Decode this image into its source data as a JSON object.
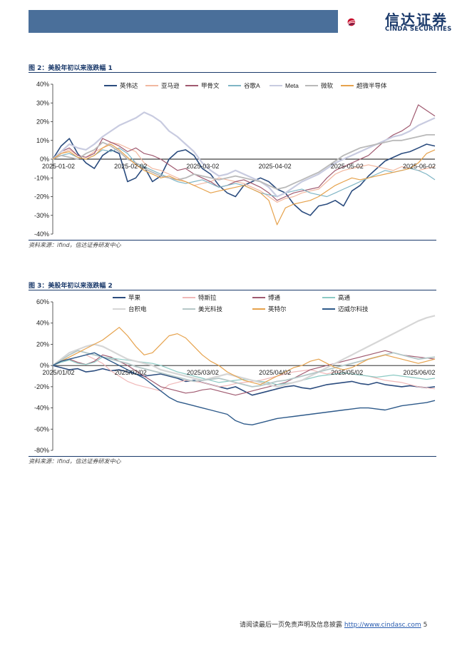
{
  "header": {
    "logo_cn": "信达证券",
    "logo_en": "CINDA SECURITIES",
    "accent": "#4a6f9a",
    "brand": "#1b3a6b"
  },
  "figures": [
    {
      "title": "图 2：美股年初以来涨跌幅 1",
      "source": "资料来源：ifind，信达证券研发中心"
    },
    {
      "title": "图 3：美股年初以来涨跌幅 2",
      "source": "资料来源：ifind，信达证券研发中心"
    }
  ],
  "footer": {
    "text": "请阅读最后一页免责声明及信息披露",
    "url": "http://www.cindasc.com",
    "page": "5"
  },
  "chart_data": [
    {
      "type": "line",
      "yticks": [
        "40%",
        "30%",
        "20%",
        "10%",
        "0%",
        "-10%",
        "-20%",
        "-30%",
        "-40%"
      ],
      "ylim": [
        -40,
        40
      ],
      "x_labels": [
        "2025-01-02",
        "2025-02-02",
        "2025-03-02",
        "2025-04-02",
        "2025-05-02",
        "2025-06-02"
      ],
      "legend_position": "top",
      "series": [
        {
          "name": "英伟达",
          "color": "#2b4c7e",
          "width": 1.6,
          "values": [
            0,
            7,
            11,
            3,
            -2,
            -5,
            2,
            5,
            3,
            -12,
            -10,
            -4,
            -12,
            -9,
            0,
            4,
            5,
            2,
            -5,
            -8,
            -14,
            -18,
            -20,
            -14,
            -12,
            -10,
            -12,
            -16,
            -18,
            -24,
            -28,
            -30,
            -25,
            -24,
            -22,
            -25,
            -17,
            -14,
            -9,
            -5,
            -1,
            1,
            3,
            4,
            6,
            8,
            7
          ]
        },
        {
          "name": "亚马逊",
          "color": "#f2b8a0",
          "width": 1.2,
          "values": [
            0,
            3,
            5,
            2,
            1,
            4,
            6,
            9,
            8,
            6,
            4,
            -2,
            -5,
            -6,
            -8,
            -10,
            -12,
            -14,
            -13,
            -12,
            -10,
            -11,
            -12,
            -13,
            -15,
            -17,
            -20,
            -23,
            -21,
            -20,
            -18,
            -17,
            -16,
            -12,
            -8,
            -6,
            -5,
            -4,
            -3,
            -4,
            -5,
            -6,
            -4,
            -5,
            -6,
            -5,
            -4
          ]
        },
        {
          "name": "甲骨文",
          "color": "#a05a70",
          "width": 1.2,
          "values": [
            0,
            4,
            6,
            2,
            1,
            3,
            11,
            9,
            7,
            4,
            6,
            3,
            2,
            0,
            -3,
            -6,
            -5,
            -8,
            -10,
            -12,
            -15,
            -14,
            -12,
            -11,
            -13,
            -15,
            -18,
            -22,
            -20,
            -18,
            -17,
            -16,
            -15,
            -10,
            -6,
            -4,
            -2,
            0,
            2,
            6,
            10,
            13,
            15,
            18,
            29,
            26,
            23
          ]
        },
        {
          "name": "谷歌A",
          "color": "#7fb5c5",
          "width": 1.2,
          "values": [
            0,
            2,
            3,
            1,
            0,
            2,
            5,
            4,
            6,
            3,
            -2,
            -4,
            -6,
            -8,
            -10,
            -12,
            -13,
            -12,
            -11,
            -13,
            -15,
            -14,
            -13,
            -14,
            -16,
            -18,
            -19,
            -20,
            -18,
            -17,
            -16,
            -18,
            -19,
            -20,
            -18,
            -16,
            -14,
            -12,
            -10,
            -8,
            -6,
            -7,
            -6,
            -5,
            -6,
            -8,
            -11
          ]
        },
        {
          "name": "Meta",
          "color": "#c8cbe0",
          "width": 2.2,
          "values": [
            0,
            4,
            8,
            6,
            5,
            8,
            12,
            15,
            18,
            20,
            22,
            25,
            23,
            20,
            15,
            12,
            8,
            4,
            -2,
            -6,
            -9,
            -8,
            -6,
            -8,
            -10,
            -12,
            -15,
            -20,
            -18,
            -15,
            -12,
            -10,
            -8,
            -5,
            -2,
            0,
            2,
            4,
            6,
            8,
            10,
            12,
            13,
            15,
            18,
            20,
            22
          ]
        },
        {
          "name": "微软",
          "color": "#b9b9b9",
          "width": 1.8,
          "values": [
            0,
            2,
            1,
            0,
            3,
            5,
            9,
            7,
            4,
            0,
            -2,
            -5,
            -7,
            -9,
            -10,
            -11,
            -10,
            -8,
            -9,
            -10,
            -11,
            -10,
            -9,
            -10,
            -11,
            -12,
            -14,
            -16,
            -15,
            -13,
            -11,
            -9,
            -7,
            -4,
            -1,
            2,
            4,
            6,
            7,
            8,
            9,
            10,
            10,
            11,
            12,
            13,
            13
          ]
        },
        {
          "name": "超微半导体",
          "color": "#e6a24c",
          "width": 1.2,
          "values": [
            0,
            3,
            4,
            1,
            0,
            2,
            6,
            8,
            5,
            1,
            -3,
            -6,
            -8,
            -10,
            -9,
            -11,
            -12,
            -14,
            -16,
            -18,
            -17,
            -16,
            -15,
            -14,
            -16,
            -18,
            -22,
            -35,
            -26,
            -24,
            -23,
            -22,
            -20,
            -17,
            -14,
            -12,
            -10,
            -11,
            -10,
            -9,
            -8,
            -7,
            -6,
            -5,
            -2,
            3,
            5
          ]
        }
      ]
    },
    {
      "type": "line",
      "yticks": [
        "60%",
        "40%",
        "20%",
        "0%",
        "-20%",
        "-40%",
        "-60%",
        "-80%"
      ],
      "ylim": [
        -80,
        60
      ],
      "x_labels": [
        "2025/01/02",
        "2025/02/02",
        "2025/03/02",
        "2025/04/02",
        "2025/05/02",
        "2025/06/02"
      ],
      "legend_position": "top",
      "series": [
        {
          "name": "苹果",
          "color": "#2b4c7e",
          "width": 1.6,
          "values": [
            0,
            -2,
            -4,
            -3,
            -6,
            -5,
            -3,
            -5,
            -4,
            -6,
            -8,
            -10,
            -9,
            -8,
            -10,
            -12,
            -15,
            -14,
            -16,
            -18,
            -20,
            -22,
            -20,
            -24,
            -28,
            -26,
            -24,
            -22,
            -20,
            -19,
            -21,
            -22,
            -20,
            -18,
            -17,
            -16,
            -15,
            -17,
            -18,
            -16,
            -18,
            -19,
            -20,
            -19,
            -20,
            -21,
            -20
          ]
        },
        {
          "name": "特斯拉",
          "color": "#f0b8b8",
          "width": 1.2,
          "values": [
            0,
            4,
            6,
            8,
            10,
            6,
            2,
            -5,
            -10,
            -15,
            -18,
            -20,
            -22,
            -24,
            -18,
            -16,
            -14,
            -15,
            -16,
            -18,
            -20,
            -19,
            -17,
            -16,
            -15,
            -14,
            -12,
            -10,
            -8,
            -6,
            -5,
            -4,
            -6,
            -8,
            -6,
            -7,
            -8,
            -9,
            -10,
            -12,
            -14,
            -15,
            -16,
            -18,
            -20,
            -21,
            -22
          ]
        },
        {
          "name": "博通",
          "color": "#a05a70",
          "width": 1.2,
          "values": [
            0,
            4,
            6,
            3,
            1,
            4,
            10,
            8,
            4,
            0,
            -5,
            -10,
            -15,
            -20,
            -22,
            -24,
            -26,
            -25,
            -23,
            -22,
            -24,
            -26,
            -28,
            -26,
            -24,
            -22,
            -20,
            -18,
            -16,
            -12,
            -8,
            -4,
            -2,
            0,
            2,
            4,
            6,
            8,
            10,
            12,
            14,
            12,
            10,
            9,
            8,
            7,
            6
          ]
        },
        {
          "name": "高通",
          "color": "#8ccac4",
          "width": 1.2,
          "values": [
            0,
            3,
            5,
            2,
            1,
            3,
            8,
            7,
            6,
            5,
            4,
            3,
            2,
            0,
            -3,
            -6,
            -8,
            -10,
            -12,
            -14,
            -16,
            -15,
            -14,
            -13,
            -14,
            -15,
            -16,
            -18,
            -17,
            -16,
            -14,
            -12,
            -10,
            -9,
            -8,
            -7,
            -8,
            -9,
            -10,
            -11,
            -10,
            -9,
            -10,
            -11,
            -12,
            -13,
            -12
          ]
        },
        {
          "name": "台积电",
          "color": "#d6d6d6",
          "width": 2.2,
          "values": [
            0,
            6,
            12,
            15,
            18,
            20,
            18,
            14,
            10,
            6,
            4,
            2,
            0,
            -4,
            -6,
            -8,
            -10,
            -12,
            -14,
            -12,
            -10,
            -8,
            -10,
            -12,
            -14,
            -16,
            -18,
            -20,
            -18,
            -16,
            -14,
            -10,
            -6,
            -2,
            2,
            6,
            10,
            14,
            18,
            22,
            26,
            30,
            34,
            38,
            42,
            45,
            47
          ]
        },
        {
          "name": "美光科技",
          "color": "#b5c7c7",
          "width": 1.8,
          "values": [
            0,
            5,
            10,
            14,
            12,
            10,
            8,
            6,
            4,
            2,
            -1,
            -3,
            -5,
            -7,
            -9,
            -11,
            -13,
            -15,
            -14,
            -13,
            -12,
            -14,
            -16,
            -18,
            -20,
            -19,
            -17,
            -15,
            -14,
            -12,
            -10,
            -8,
            -6,
            -4,
            -2,
            0,
            2,
            4,
            6,
            8,
            10,
            12,
            10,
            8,
            6,
            7,
            8
          ]
        },
        {
          "name": "英特尔",
          "color": "#e6a24c",
          "width": 1.2,
          "values": [
            0,
            4,
            8,
            12,
            16,
            20,
            24,
            30,
            36,
            28,
            18,
            10,
            12,
            20,
            28,
            30,
            26,
            18,
            10,
            4,
            0,
            -6,
            -10,
            -14,
            -16,
            -18,
            -14,
            -10,
            -6,
            -2,
            0,
            4,
            6,
            2,
            -2,
            -4,
            -2,
            2,
            6,
            8,
            10,
            8,
            6,
            4,
            2,
            4,
            6
          ]
        },
        {
          "name": "迈威尔科技",
          "color": "#2e5a8a",
          "width": 1.4,
          "values": [
            0,
            4,
            6,
            8,
            10,
            12,
            8,
            4,
            0,
            -4,
            -8,
            -12,
            -18,
            -24,
            -30,
            -34,
            -36,
            -38,
            -40,
            -42,
            -44,
            -46,
            -52,
            -55,
            -56,
            -54,
            -52,
            -50,
            -49,
            -48,
            -47,
            -46,
            -45,
            -44,
            -43,
            -42,
            -41,
            -40,
            -40,
            -41,
            -42,
            -40,
            -38,
            -37,
            -36,
            -35,
            -33
          ]
        }
      ]
    }
  ]
}
